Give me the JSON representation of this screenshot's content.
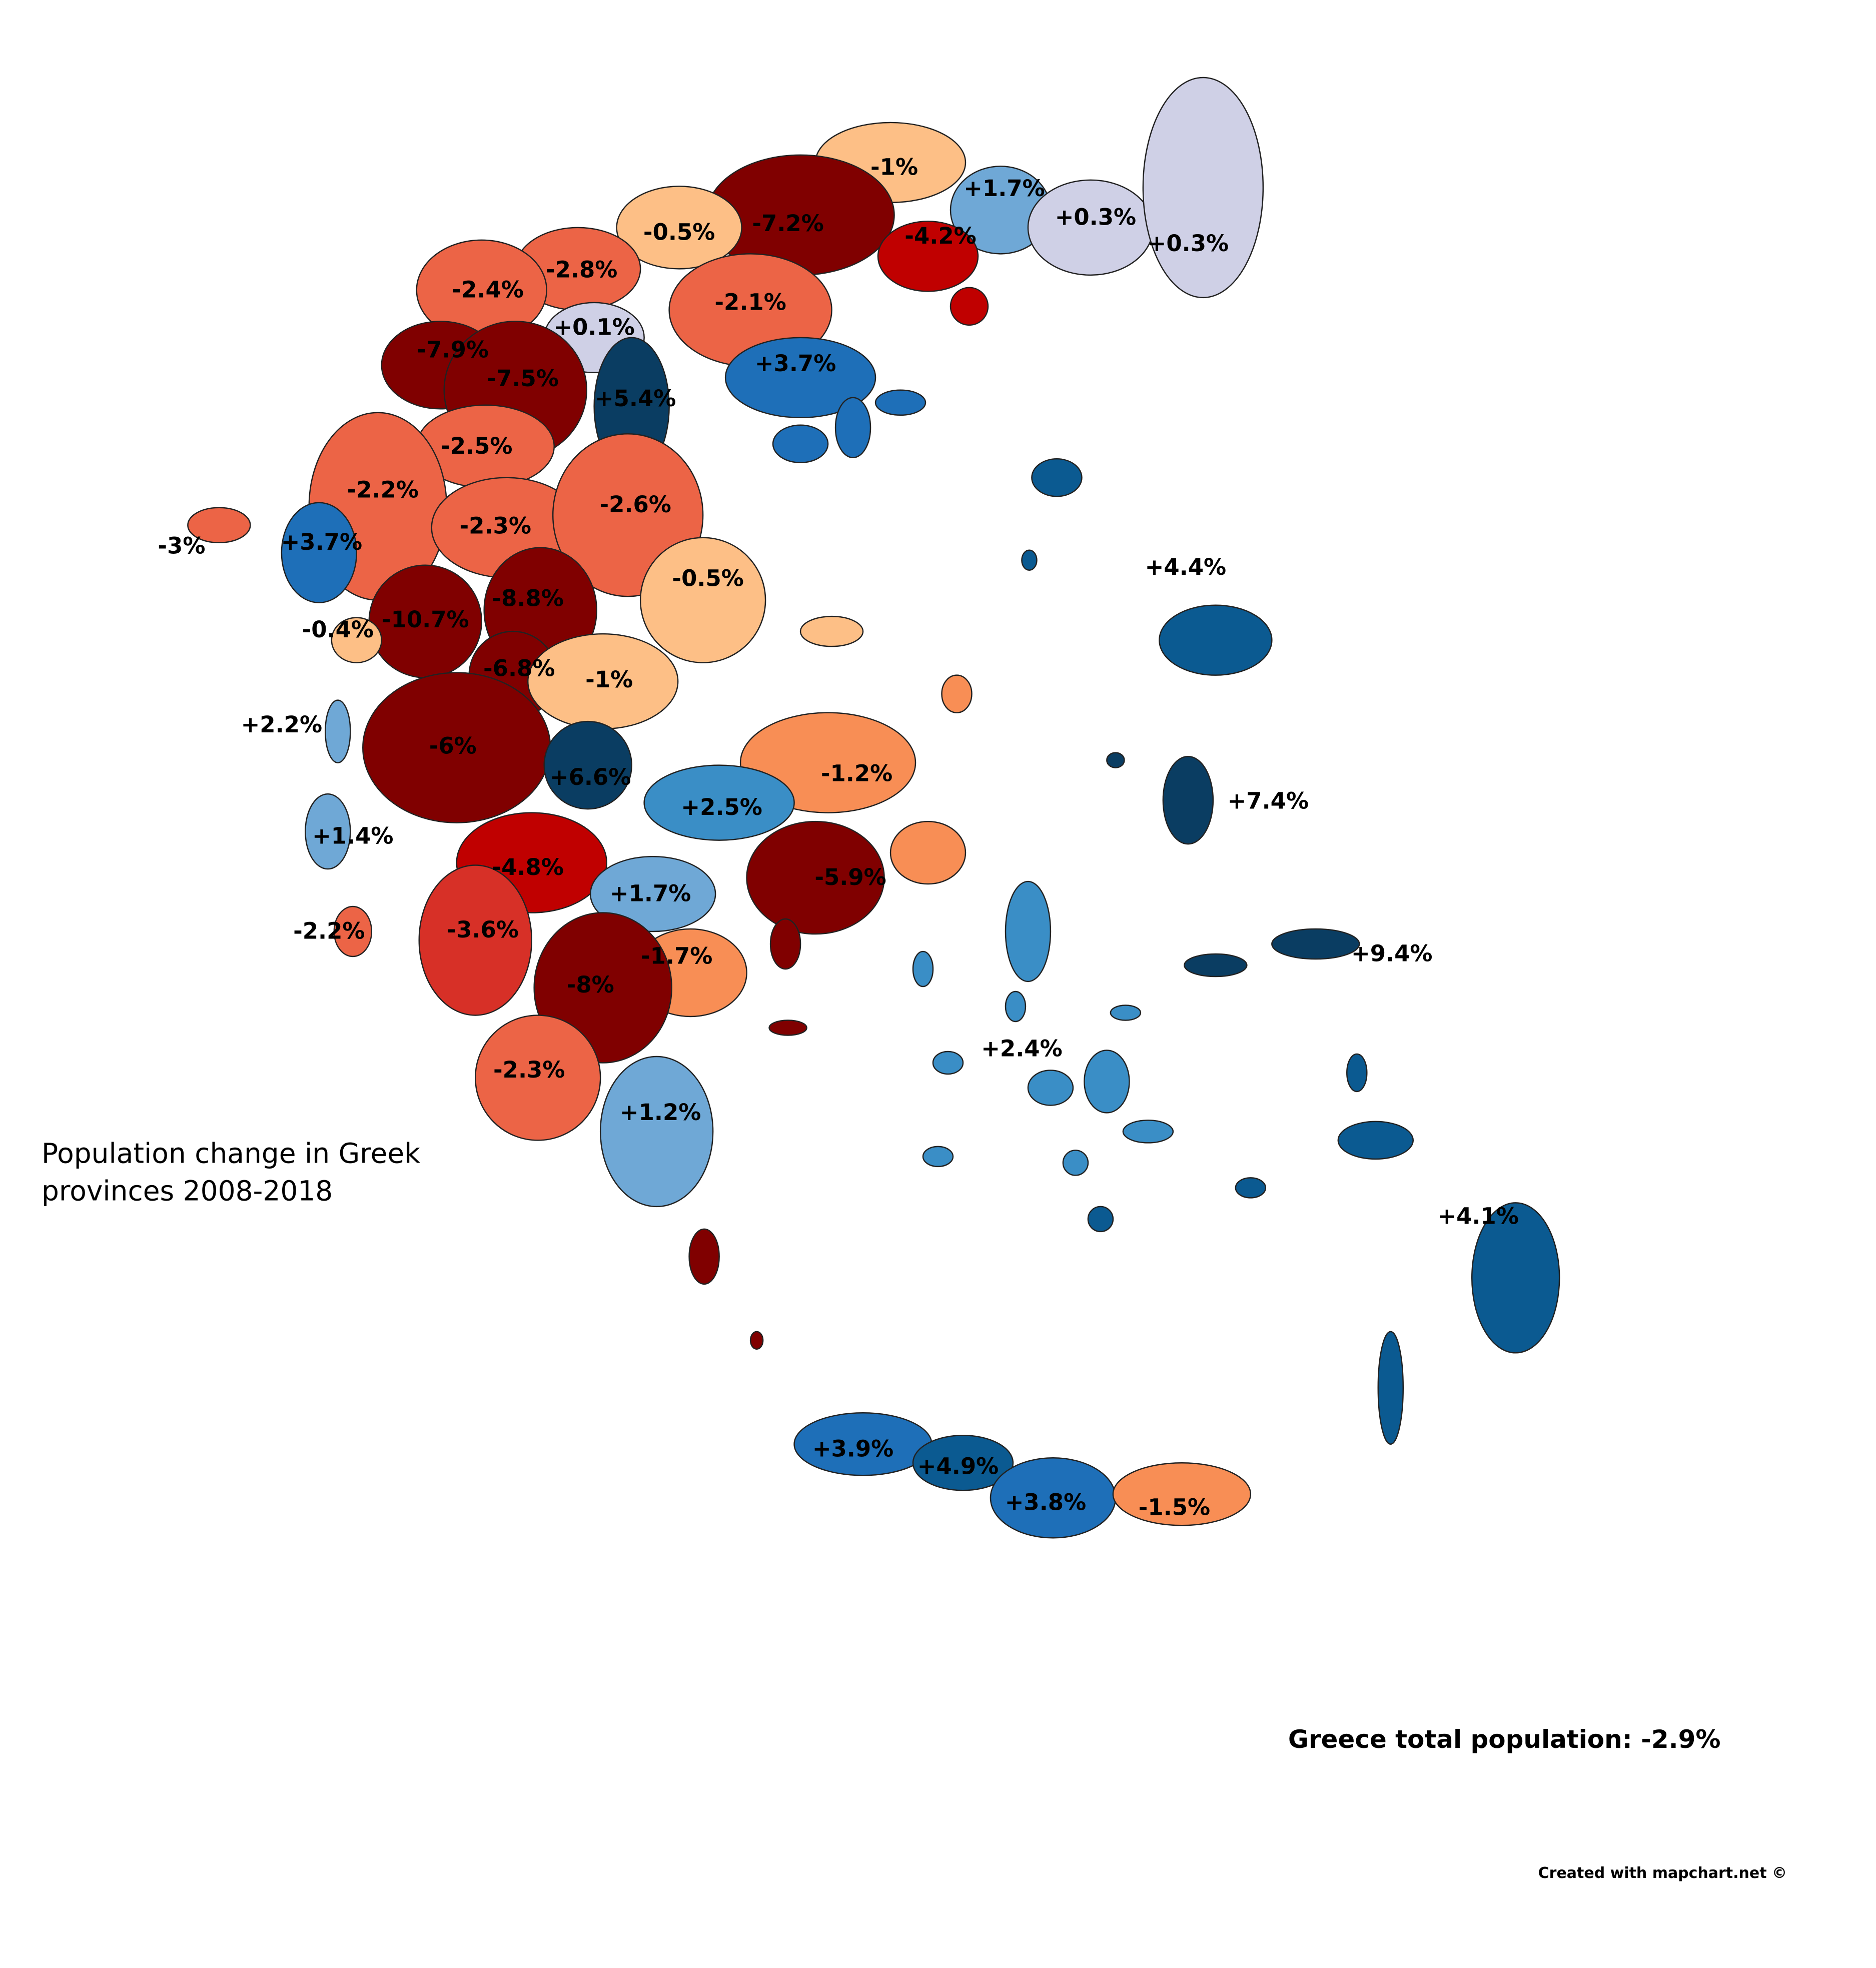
{
  "title_lines": [
    "Population change in Greek",
    "provinces 2008-2018"
  ],
  "total": "Greece total population: -2.9%",
  "credit": "Created with mapchart.net ©",
  "regions": [
    {
      "label": "-1%",
      "color": "#fdbf86"
    },
    {
      "label": "-7.2%",
      "color": "#800000"
    },
    {
      "label": "-0.5%",
      "color": "#fdbf86"
    },
    {
      "label": "+1.7%",
      "color": "#6fa8d6"
    },
    {
      "label": "+0.3%",
      "color": "#cfd0e6"
    },
    {
      "label": "+0.3%",
      "color": "#cfd0e6"
    },
    {
      "label": "-4.2%",
      "color": "#c00000"
    },
    {
      "label": "-2.8%",
      "color": "#ec6446"
    },
    {
      "label": "-2.4%",
      "color": "#ec6446"
    },
    {
      "label": "-2.1%",
      "color": "#ec6446"
    },
    {
      "label": "+0.1%",
      "color": "#cfd0e6"
    },
    {
      "label": "-7.9%",
      "color": "#800000"
    },
    {
      "label": "-7.5%",
      "color": "#800000"
    },
    {
      "label": "+3.7%",
      "color": "#1e6fb8"
    },
    {
      "label": "+5.4%",
      "color": "#0a3d62"
    },
    {
      "label": "-2.5%",
      "color": "#ec6446"
    },
    {
      "label": "-2.2%",
      "color": "#ec6446"
    },
    {
      "label": "-2.3%",
      "color": "#ec6446"
    },
    {
      "label": "-2.6%",
      "color": "#ec6446"
    },
    {
      "label": "-3%",
      "color": "#ec6446"
    },
    {
      "label": "+3.7%",
      "color": "#1e6fb8"
    },
    {
      "label": "-0.5%",
      "color": "#fdbf86"
    },
    {
      "label": "+4.4%",
      "color": "#0b5a91"
    },
    {
      "label": "-8.8%",
      "color": "#800000"
    },
    {
      "label": "-10.7%",
      "color": "#800000"
    },
    {
      "label": "-0.4%",
      "color": "#fdbf86"
    },
    {
      "label": "-6.8%",
      "color": "#800000"
    },
    {
      "label": "-1%",
      "color": "#fdbf86"
    },
    {
      "label": "+2.2%",
      "color": "#6fa8d6"
    },
    {
      "label": "-6%",
      "color": "#800000"
    },
    {
      "label": "+6.6%",
      "color": "#0a3d62"
    },
    {
      "label": "-1.2%",
      "color": "#f88e55"
    },
    {
      "label": "+7.4%",
      "color": "#0a3d62"
    },
    {
      "label": "+2.5%",
      "color": "#3a8ec6"
    },
    {
      "label": "+1.4%",
      "color": "#6fa8d6"
    },
    {
      "label": "-4.8%",
      "color": "#c00000"
    },
    {
      "label": "-5.9%",
      "color": "#800000"
    },
    {
      "label": "+1.7%",
      "color": "#6fa8d6"
    },
    {
      "label": "-2.2%",
      "color": "#ec6446"
    },
    {
      "label": "-3.6%",
      "color": "#d73027"
    },
    {
      "label": "-1.7%",
      "color": "#f88e55"
    },
    {
      "label": "+9.4%",
      "color": "#0a3d62"
    },
    {
      "label": "-8%",
      "color": "#800000"
    },
    {
      "label": "+2.4%",
      "color": "#3a8ec6"
    },
    {
      "label": "-2.3%",
      "color": "#ec6446"
    },
    {
      "label": "+1.2%",
      "color": "#6fa8d6"
    },
    {
      "label": "+4.1%",
      "color": "#0b5a91"
    },
    {
      "label": "+3.9%",
      "color": "#1e6fb8"
    },
    {
      "label": "+4.9%",
      "color": "#0b5a91"
    },
    {
      "label": "+3.8%",
      "color": "#1e6fb8"
    },
    {
      "label": "-1.5%",
      "color": "#f88e55"
    }
  ]
}
